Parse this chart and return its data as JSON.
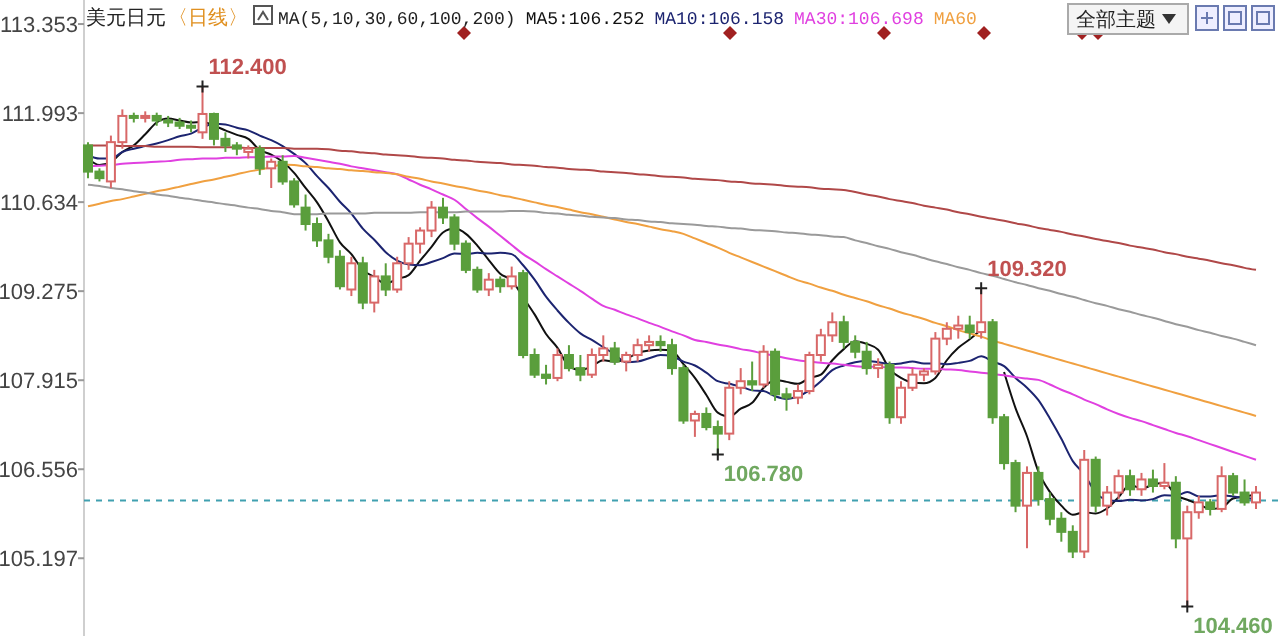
{
  "chart_data": {
    "type": "candlestick",
    "title": "美元日元",
    "subtitle": "〈日线〉",
    "legend_title": "MA(5,10,30,60,100,200)",
    "legend": "top",
    "tick_labels": "y",
    "categories": [
      null,
      null,
      null,
      null,
      null,
      null,
      null,
      null,
      null,
      null,
      null,
      null,
      null,
      null,
      null,
      null,
      null,
      null,
      null,
      null,
      null,
      null,
      null,
      null,
      null,
      null,
      null,
      null,
      null,
      null,
      null,
      null,
      null,
      null,
      null,
      null,
      null,
      null,
      null,
      null,
      null,
      null,
      null,
      null,
      null,
      null,
      null,
      null,
      null,
      null,
      null,
      null,
      null,
      null,
      null,
      null,
      null,
      null,
      null,
      null,
      null,
      null,
      null,
      null,
      null,
      null,
      null,
      null,
      null,
      null,
      null,
      null,
      null,
      null,
      null,
      null,
      null,
      null,
      null,
      null,
      null,
      null,
      null,
      null,
      null,
      null,
      null,
      null,
      null,
      null,
      null,
      null,
      null,
      null,
      null,
      null,
      null,
      null,
      null,
      null,
      null,
      null,
      null
    ],
    "ylim": [
      104.01,
      113.72
    ],
    "yticks": [
      105.197,
      106.556,
      107.915,
      109.275,
      110.634,
      111.993,
      113.353
    ],
    "ref_lines": [
      {
        "axis": "y",
        "value": 106.08,
        "color": "#40a0b0",
        "line_style": "dashed"
      }
    ],
    "annotations": [
      "112.400",
      "109.320",
      "106.780",
      "104.460",
      "全部主题"
    ],
    "ohlc": [
      [
        111.5,
        111.55,
        111.0,
        111.1
      ],
      [
        111.1,
        111.15,
        110.95,
        111.0
      ],
      [
        110.95,
        111.65,
        110.85,
        111.55
      ],
      [
        111.55,
        112.05,
        111.45,
        111.95
      ],
      [
        111.95,
        112.0,
        111.85,
        111.92
      ],
      [
        111.92,
        112.02,
        111.85,
        111.95
      ],
      [
        111.95,
        112.0,
        111.8,
        111.88
      ],
      [
        111.88,
        111.95,
        111.78,
        111.85
      ],
      [
        111.85,
        111.92,
        111.75,
        111.8
      ],
      [
        111.8,
        111.88,
        111.7,
        111.78
      ],
      [
        111.7,
        112.4,
        111.6,
        111.98
      ],
      [
        111.98,
        112.0,
        111.5,
        111.6
      ],
      [
        111.6,
        111.7,
        111.4,
        111.5
      ],
      [
        111.5,
        111.55,
        111.35,
        111.45
      ],
      [
        111.4,
        111.5,
        111.3,
        111.45
      ],
      [
        111.45,
        111.5,
        111.05,
        111.15
      ],
      [
        111.15,
        111.3,
        110.85,
        111.25
      ],
      [
        111.25,
        111.35,
        110.9,
        110.95
      ],
      [
        110.95,
        111.0,
        110.55,
        110.6
      ],
      [
        110.55,
        110.75,
        110.2,
        110.3
      ],
      [
        110.3,
        110.4,
        109.95,
        110.05
      ],
      [
        110.05,
        110.15,
        109.7,
        109.8
      ],
      [
        109.8,
        109.9,
        109.3,
        109.35
      ],
      [
        109.3,
        109.8,
        109.2,
        109.7
      ],
      [
        109.7,
        109.8,
        109.0,
        109.1
      ],
      [
        109.1,
        109.6,
        108.95,
        109.5
      ],
      [
        109.5,
        109.7,
        109.2,
        109.3
      ],
      [
        109.3,
        109.8,
        109.25,
        109.7
      ],
      [
        109.7,
        110.1,
        109.6,
        110.0
      ],
      [
        110.0,
        110.25,
        109.85,
        110.2
      ],
      [
        110.2,
        110.65,
        110.1,
        110.55
      ],
      [
        110.55,
        110.7,
        110.3,
        110.4
      ],
      [
        110.4,
        110.45,
        109.9,
        110.0
      ],
      [
        110.0,
        110.05,
        109.55,
        109.6
      ],
      [
        109.6,
        109.65,
        109.25,
        109.3
      ],
      [
        109.3,
        109.55,
        109.2,
        109.45
      ],
      [
        109.45,
        109.5,
        109.25,
        109.35
      ],
      [
        109.35,
        109.65,
        109.3,
        109.5
      ],
      [
        109.55,
        109.6,
        108.25,
        108.3
      ],
      [
        108.3,
        108.4,
        107.95,
        108.0
      ],
      [
        108.0,
        108.15,
        107.85,
        107.95
      ],
      [
        107.95,
        108.4,
        107.9,
        108.3
      ],
      [
        108.3,
        108.45,
        108.05,
        108.1
      ],
      [
        108.1,
        108.3,
        107.9,
        108.0
      ],
      [
        108.0,
        108.4,
        107.95,
        108.3
      ],
      [
        108.3,
        108.6,
        108.2,
        108.4
      ],
      [
        108.4,
        108.5,
        108.15,
        108.2
      ],
      [
        108.2,
        108.35,
        108.05,
        108.3
      ],
      [
        108.3,
        108.55,
        108.2,
        108.45
      ],
      [
        108.45,
        108.6,
        108.35,
        108.5
      ],
      [
        108.5,
        108.6,
        108.35,
        108.45
      ],
      [
        108.45,
        108.55,
        108.0,
        108.1
      ],
      [
        108.1,
        108.15,
        107.25,
        107.3
      ],
      [
        107.3,
        107.45,
        107.05,
        107.4
      ],
      [
        107.4,
        107.5,
        107.15,
        107.2
      ],
      [
        107.2,
        107.3,
        106.78,
        107.1
      ],
      [
        107.1,
        107.9,
        107.0,
        107.8
      ],
      [
        107.8,
        108.1,
        107.7,
        107.9
      ],
      [
        107.9,
        108.2,
        107.75,
        107.85
      ],
      [
        107.85,
        108.45,
        107.8,
        108.35
      ],
      [
        108.35,
        108.4,
        107.6,
        107.7
      ],
      [
        107.7,
        107.8,
        107.45,
        107.65
      ],
      [
        107.65,
        107.85,
        107.55,
        107.75
      ],
      [
        107.75,
        108.35,
        107.7,
        108.3
      ],
      [
        108.3,
        108.7,
        108.2,
        108.6
      ],
      [
        108.6,
        108.95,
        108.5,
        108.8
      ],
      [
        108.8,
        108.9,
        108.4,
        108.5
      ],
      [
        108.5,
        108.6,
        108.25,
        108.35
      ],
      [
        108.35,
        108.5,
        108.0,
        108.1
      ],
      [
        108.1,
        108.25,
        107.95,
        108.15
      ],
      [
        108.15,
        108.2,
        107.25,
        107.35
      ],
      [
        107.35,
        107.9,
        107.25,
        107.8
      ],
      [
        107.8,
        108.1,
        107.75,
        108.0
      ],
      [
        108.0,
        108.1,
        107.9,
        108.05
      ],
      [
        108.05,
        108.65,
        108.0,
        108.55
      ],
      [
        108.55,
        108.8,
        108.45,
        108.7
      ],
      [
        108.7,
        108.9,
        108.55,
        108.75
      ],
      [
        108.75,
        108.9,
        108.55,
        108.65
      ],
      [
        108.65,
        109.32,
        108.55,
        108.8
      ],
      [
        108.8,
        108.85,
        107.25,
        107.35
      ],
      [
        107.35,
        107.4,
        106.55,
        106.65
      ],
      [
        106.65,
        106.7,
        105.9,
        106.0
      ],
      [
        106.0,
        106.6,
        105.35,
        106.5
      ],
      [
        106.5,
        106.6,
        106.0,
        106.1
      ],
      [
        106.1,
        106.2,
        105.7,
        105.8
      ],
      [
        105.8,
        105.9,
        105.45,
        105.6
      ],
      [
        105.6,
        105.7,
        105.2,
        105.3
      ],
      [
        105.3,
        106.85,
        105.2,
        106.7
      ],
      [
        106.7,
        106.75,
        105.9,
        106.0
      ],
      [
        106.0,
        106.3,
        105.85,
        106.2
      ],
      [
        106.2,
        106.55,
        106.1,
        106.45
      ],
      [
        106.45,
        106.55,
        106.15,
        106.25
      ],
      [
        106.25,
        106.5,
        106.15,
        106.4
      ],
      [
        106.4,
        106.55,
        106.2,
        106.3
      ],
      [
        106.3,
        106.65,
        106.25,
        106.35
      ],
      [
        106.35,
        106.45,
        105.35,
        105.5
      ],
      [
        105.5,
        106.0,
        104.46,
        105.9
      ],
      [
        105.9,
        106.15,
        105.8,
        106.05
      ],
      [
        106.05,
        106.1,
        105.85,
        105.95
      ],
      [
        105.95,
        106.6,
        105.9,
        106.45
      ],
      [
        106.45,
        106.5,
        106.15,
        106.2
      ],
      [
        106.2,
        106.4,
        106.0,
        106.05
      ],
      [
        106.05,
        106.3,
        105.95,
        106.2
      ]
    ],
    "series": [
      {
        "type": "line",
        "name": "MA5:106.252",
        "color": "#111111",
        "values": [
          111.3,
          111.2,
          111.25,
          111.4,
          111.5,
          111.67,
          111.85,
          111.91,
          111.88,
          111.85,
          111.86,
          111.8,
          111.73,
          111.66,
          111.6,
          111.43,
          111.36,
          111.25,
          111.08,
          110.85,
          110.63,
          110.34,
          110.02,
          109.84,
          109.6,
          109.49,
          109.39,
          109.46,
          109.52,
          109.74,
          109.95,
          110.17,
          110.23,
          110.15,
          109.97,
          109.75,
          109.54,
          109.44,
          109.18,
          108.92,
          108.62,
          108.41,
          108.13,
          108.07,
          108.13,
          108.22,
          108.2,
          108.24,
          108.33,
          108.37,
          108.38,
          108.36,
          108.16,
          107.95,
          107.69,
          107.42,
          107.36,
          107.48,
          107.57,
          107.8,
          107.92,
          107.89,
          107.86,
          107.95,
          108.0,
          108.22,
          108.39,
          108.51,
          108.47,
          108.38,
          108.09,
          107.95,
          107.88,
          107.87,
          107.95,
          108.22,
          108.41,
          108.54,
          108.69,
          null,
          108.04,
          107.49,
          107.06,
          106.52,
          106.21,
          106.0,
          105.86,
          105.9,
          105.88,
          105.96,
          106.13,
          106.32,
          106.26,
          106.32,
          106.35,
          106.16,
          106.09,
          106.02,
          105.95,
          105.97,
          106.11,
          106.14,
          106.17
        ]
      },
      {
        "type": "line",
        "name": "MA10:106.158",
        "color": "#1c2470",
        "values": [
          111.35,
          111.3,
          111.3,
          111.4,
          111.45,
          111.49,
          111.53,
          111.58,
          111.64,
          111.68,
          111.77,
          111.83,
          111.82,
          111.77,
          111.73,
          111.65,
          111.58,
          111.49,
          111.37,
          111.23,
          111.03,
          110.85,
          110.64,
          110.46,
          110.23,
          110.06,
          109.87,
          109.74,
          109.68,
          109.67,
          109.72,
          109.78,
          109.85,
          109.84,
          109.86,
          109.85,
          109.86,
          109.84,
          109.67,
          109.45,
          109.19,
          108.98,
          108.79,
          108.63,
          108.53,
          108.42,
          108.31,
          108.19,
          108.2,
          108.25,
          108.3,
          108.28,
          108.2,
          108.14,
          108.03,
          107.9,
          107.86,
          107.82,
          107.76,
          107.75,
          107.67,
          107.63,
          107.67,
          107.76,
          107.9,
          108.07,
          108.14,
          108.19,
          108.21,
          108.19,
          108.16,
          108.17,
          108.2,
          108.17,
          108.17,
          108.16,
          108.18,
          108.21,
          108.28,
          108.2,
          108.13,
          107.95,
          107.8,
          107.61,
          107.33,
          107.02,
          106.68,
          106.48,
          106.2,
          106.09,
          106.07,
          106.09,
          106.08,
          106.1,
          106.16,
          106.15,
          106.21,
          106.14,
          106.14,
          106.16,
          106.14,
          106.12,
          106.1
        ]
      },
      {
        "type": "line",
        "name": "MA30:106.698",
        "color": "#e040e0",
        "values": [
          111.18,
          111.19,
          111.2,
          111.22,
          111.23,
          111.24,
          111.25,
          111.26,
          111.28,
          111.29,
          111.3,
          111.3,
          111.31,
          111.31,
          111.32,
          111.32,
          111.33,
          111.33,
          111.34,
          111.31,
          111.28,
          111.25,
          111.22,
          111.18,
          111.15,
          111.12,
          111.09,
          111.06,
          110.98,
          110.9,
          110.83,
          110.75,
          110.67,
          110.53,
          110.39,
          110.26,
          110.12,
          109.98,
          109.84,
          109.73,
          109.61,
          109.5,
          109.39,
          109.28,
          109.16,
          109.05,
          108.99,
          108.92,
          108.86,
          108.79,
          108.73,
          108.66,
          108.6,
          108.53,
          108.5,
          108.46,
          108.43,
          108.39,
          108.36,
          108.32,
          108.29,
          108.25,
          108.22,
          108.2,
          108.18,
          108.17,
          108.15,
          108.13,
          108.12,
          108.12,
          108.11,
          108.11,
          108.1,
          108.09,
          108.09,
          108.08,
          108.07,
          108.05,
          108.03,
          108.01,
          107.99,
          107.96,
          107.94,
          107.92,
          107.85,
          107.77,
          107.7,
          107.62,
          107.55,
          107.47,
          107.4,
          107.34,
          107.29,
          107.23,
          107.17,
          107.11,
          107.06,
          107.0,
          106.94,
          106.88,
          106.82,
          106.76,
          106.7
        ]
      },
      {
        "type": "line",
        "name": "MA60",
        "color": "#f0a040",
        "values": [
          110.57,
          110.61,
          110.65,
          110.68,
          110.72,
          110.76,
          110.8,
          110.83,
          110.87,
          110.91,
          110.95,
          110.98,
          111.02,
          111.06,
          111.1,
          111.13,
          111.17,
          111.21,
          111.2,
          111.18,
          111.17,
          111.15,
          111.14,
          111.12,
          111.11,
          111.09,
          111.08,
          111.06,
          111.02,
          110.99,
          110.95,
          110.92,
          110.88,
          110.85,
          110.81,
          110.78,
          110.74,
          110.71,
          110.67,
          110.63,
          110.59,
          110.56,
          110.52,
          110.48,
          110.45,
          110.41,
          110.37,
          110.33,
          110.3,
          110.26,
          110.22,
          110.19,
          110.15,
          110.08,
          110.01,
          109.94,
          109.86,
          109.79,
          109.72,
          109.65,
          109.58,
          109.51,
          109.44,
          109.39,
          109.33,
          109.28,
          109.22,
          109.17,
          109.12,
          109.06,
          109.01,
          108.95,
          108.9,
          108.85,
          108.79,
          108.74,
          108.68,
          108.63,
          108.58,
          108.52,
          108.47,
          108.42,
          108.37,
          108.32,
          108.27,
          108.22,
          108.17,
          108.12,
          108.07,
          108.02,
          107.97,
          107.92,
          107.87,
          107.82,
          107.77,
          107.72,
          107.67,
          107.62,
          107.57,
          107.52,
          107.47,
          107.42,
          107.37
        ]
      },
      {
        "type": "line",
        "color": "#9a9a9a",
        "values": [
          110.9,
          110.88,
          110.85,
          110.83,
          110.8,
          110.78,
          110.75,
          110.73,
          110.7,
          110.68,
          110.65,
          110.63,
          110.6,
          110.58,
          110.55,
          110.53,
          110.5,
          110.48,
          110.45,
          110.45,
          110.45,
          110.46,
          110.46,
          110.46,
          110.46,
          110.47,
          110.47,
          110.47,
          110.47,
          110.48,
          110.48,
          110.48,
          110.48,
          110.49,
          110.49,
          110.49,
          110.49,
          110.5,
          110.5,
          110.49,
          110.47,
          110.46,
          110.44,
          110.43,
          110.41,
          110.4,
          110.39,
          110.37,
          110.36,
          110.34,
          110.33,
          110.31,
          110.3,
          110.29,
          110.27,
          110.26,
          110.24,
          110.23,
          110.21,
          110.2,
          110.19,
          110.17,
          110.16,
          110.14,
          110.13,
          110.11,
          110.1,
          110.05,
          110.01,
          109.96,
          109.92,
          109.87,
          109.83,
          109.78,
          109.73,
          109.69,
          109.64,
          109.6,
          109.55,
          109.51,
          109.46,
          109.41,
          109.37,
          109.32,
          109.28,
          109.23,
          109.19,
          109.14,
          109.09,
          109.05,
          109.0,
          108.96,
          108.91,
          108.87,
          108.82,
          108.77,
          108.73,
          108.68,
          108.64,
          108.59,
          108.55,
          108.5,
          108.45
        ]
      },
      {
        "type": "line",
        "color": "#b04848",
        "values": [
          111.5,
          111.5,
          111.5,
          111.49,
          111.49,
          111.49,
          111.48,
          111.48,
          111.48,
          111.48,
          111.47,
          111.47,
          111.47,
          111.47,
          111.46,
          111.46,
          111.46,
          111.46,
          111.45,
          111.45,
          111.45,
          111.44,
          111.42,
          111.41,
          111.39,
          111.38,
          111.36,
          111.35,
          111.34,
          111.32,
          111.31,
          111.3,
          111.28,
          111.27,
          111.25,
          111.24,
          111.23,
          111.21,
          111.2,
          111.19,
          111.17,
          111.16,
          111.14,
          111.13,
          111.12,
          111.1,
          111.09,
          111.08,
          111.06,
          111.05,
          111.03,
          111.02,
          111.01,
          110.99,
          110.98,
          110.97,
          110.95,
          110.94,
          110.92,
          110.91,
          110.9,
          110.88,
          110.87,
          110.86,
          110.84,
          110.83,
          110.82,
          110.79,
          110.75,
          110.72,
          110.68,
          110.65,
          110.62,
          110.58,
          110.55,
          110.52,
          110.48,
          110.45,
          110.41,
          110.38,
          110.35,
          110.31,
          110.28,
          110.24,
          110.21,
          110.18,
          110.14,
          110.11,
          110.07,
          110.04,
          110.01,
          109.97,
          109.94,
          109.91,
          109.87,
          109.84,
          109.8,
          109.77,
          109.74,
          109.7,
          109.67,
          109.63,
          109.6
        ]
      }
    ]
  }
}
